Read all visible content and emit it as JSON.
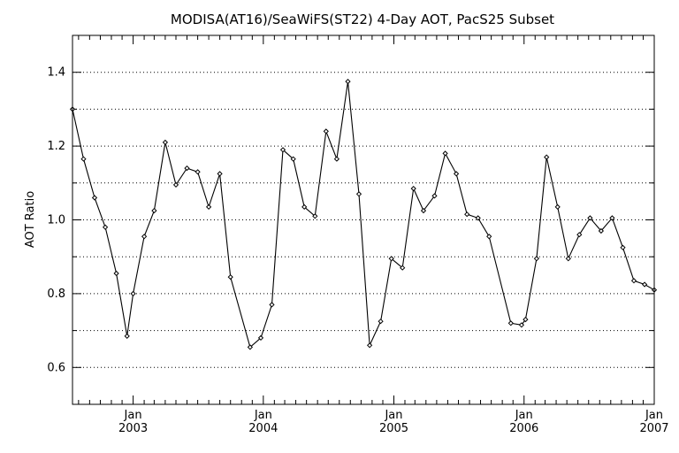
{
  "chart_data": {
    "type": "line",
    "title": "MODISA(AT16)/SeaWiFS(ST22) 4-Day AOT, PacS25 Subset",
    "xlabel": "",
    "ylabel": "AOT Ratio",
    "xlim": [
      "2002-07-15",
      "2007-01-01"
    ],
    "ylim": [
      0.5,
      1.5
    ],
    "yticks": [
      0.6,
      0.8,
      1.0,
      1.2,
      1.4
    ],
    "ytick_labels": [
      "0.6",
      "0.8",
      "1.0",
      "1.2",
      "1.4"
    ],
    "y_gridlines": [
      0.6,
      0.7,
      0.8,
      0.9,
      1.0,
      1.1,
      1.2,
      1.3,
      1.4
    ],
    "grid": "horizontal dotted",
    "xticks": [
      {
        "date": "2003-01-01",
        "month": "Jan",
        "year": "2003"
      },
      {
        "date": "2004-01-01",
        "month": "Jan",
        "year": "2004"
      },
      {
        "date": "2005-01-01",
        "month": "Jan",
        "year": "2005"
      },
      {
        "date": "2006-01-01",
        "month": "Jan",
        "year": "2006"
      },
      {
        "date": "2007-01-01",
        "month": "Jan",
        "year": "2007"
      }
    ],
    "series": [
      {
        "points": [
          [
            "2002-07-15",
            1.3
          ],
          [
            "2002-08-15",
            1.165
          ],
          [
            "2002-09-15",
            1.06
          ],
          [
            "2002-10-15",
            0.98
          ],
          [
            "2002-11-15",
            0.855
          ],
          [
            "2002-12-15",
            0.685
          ],
          [
            "2003-01-01",
            0.8
          ],
          [
            "2003-02-01",
            0.955
          ],
          [
            "2003-03-01",
            1.025
          ],
          [
            "2003-04-01",
            1.21
          ],
          [
            "2003-05-01",
            1.095
          ],
          [
            "2003-06-01",
            1.14
          ],
          [
            "2003-07-01",
            1.13
          ],
          [
            "2003-08-01",
            1.035
          ],
          [
            "2003-09-01",
            1.125
          ],
          [
            "2003-10-01",
            0.845
          ],
          [
            "2003-11-25",
            0.655
          ],
          [
            "2003-12-25",
            0.68
          ],
          [
            "2004-01-25",
            0.77
          ],
          [
            "2004-02-25",
            1.19
          ],
          [
            "2004-03-25",
            1.165
          ],
          [
            "2004-04-25",
            1.035
          ],
          [
            "2004-05-25",
            1.01
          ],
          [
            "2004-06-25",
            1.24
          ],
          [
            "2004-07-25",
            1.165
          ],
          [
            "2004-08-25",
            1.375
          ],
          [
            "2004-09-25",
            1.07
          ],
          [
            "2004-10-25",
            0.66
          ],
          [
            "2004-11-25",
            0.725
          ],
          [
            "2004-12-25",
            0.895
          ],
          [
            "2005-01-25",
            0.87
          ],
          [
            "2005-02-25",
            1.085
          ],
          [
            "2005-03-25",
            1.025
          ],
          [
            "2005-04-25",
            1.065
          ],
          [
            "2005-05-25",
            1.18
          ],
          [
            "2005-06-25",
            1.125
          ],
          [
            "2005-07-25",
            1.015
          ],
          [
            "2005-08-25",
            1.005
          ],
          [
            "2005-09-25",
            0.955
          ],
          [
            "2005-11-25",
            0.72
          ],
          [
            "2005-12-25",
            0.715
          ],
          [
            "2006-01-05",
            0.73
          ],
          [
            "2006-02-05",
            0.895
          ],
          [
            "2006-03-05",
            1.17
          ],
          [
            "2006-04-05",
            1.035
          ],
          [
            "2006-05-05",
            0.895
          ],
          [
            "2006-06-05",
            0.96
          ],
          [
            "2006-07-05",
            1.005
          ],
          [
            "2006-08-05",
            0.97
          ],
          [
            "2006-09-05",
            1.005
          ],
          [
            "2006-10-05",
            0.925
          ],
          [
            "2006-11-05",
            0.835
          ],
          [
            "2006-12-05",
            0.825
          ],
          [
            "2007-01-01",
            0.81
          ]
        ]
      }
    ]
  }
}
